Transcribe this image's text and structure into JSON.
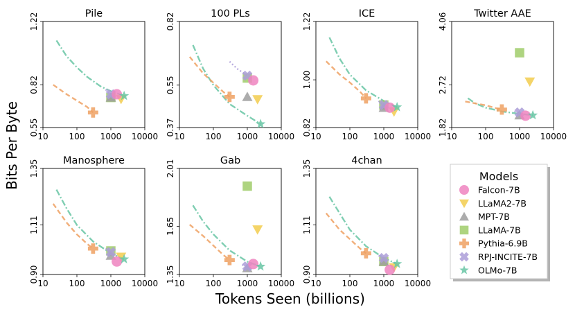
{
  "figure": {
    "xlabel": "Tokens Seen (billions)",
    "ylabel": "Bits Per Byte",
    "legend_title": "Models",
    "legend_placement": "bottom-right",
    "x_scale": "log",
    "x_ticks": [
      10,
      100,
      1000,
      10000
    ],
    "x_tick_labels": [
      "10",
      "100",
      "1000",
      "10000"
    ],
    "grid": false
  },
  "models": [
    {
      "name": "Falcon-7B",
      "marker": "circle",
      "color": "#ee84bf"
    },
    {
      "name": "LLaMA2-7B",
      "marker": "triangle-down",
      "color": "#f2cd4e"
    },
    {
      "name": "MPT-7B",
      "marker": "triangle-up",
      "color": "#9e9e9e"
    },
    {
      "name": "LLaMA-7B",
      "marker": "square",
      "color": "#a0cd6a"
    },
    {
      "name": "Pythia-6.9B",
      "marker": "plus",
      "color": "#eea163"
    },
    {
      "name": "RPJ-INCITE-7B",
      "marker": "x",
      "color": "#ab9dd8"
    },
    {
      "name": "OLMo-7B",
      "marker": "star",
      "color": "#68c6a4"
    }
  ],
  "chart_data": [
    {
      "type": "scatter",
      "title": "Pile",
      "ylim": [
        0.55,
        1.22
      ],
      "yticks": [
        0.55,
        0.82,
        1.22
      ],
      "ytick_labels": [
        "0.55",
        "0.82",
        "1.22"
      ],
      "points": {
        "Falcon-7B": [
          1500,
          0.76
        ],
        "LLaMA2-7B": [
          2000,
          0.73
        ],
        "MPT-7B": [
          1000,
          0.74
        ],
        "LLaMA-7B": [
          1000,
          0.74
        ],
        "Pythia-6.9B": [
          300,
          0.645
        ],
        "RPJ-INCITE-7B": [
          1000,
          0.76
        ],
        "OLMo-7B": [
          2460,
          0.75
        ]
      },
      "curves": {
        "Pythia-6.9B": {
          "x": [
            20,
            50,
            100,
            200,
            300
          ],
          "y": [
            0.82,
            0.76,
            0.72,
            0.68,
            0.645
          ]
        },
        "RPJ-INCITE-7B": {
          "x": [
            700,
            850,
            1000
          ],
          "y": [
            0.79,
            0.775,
            0.76
          ]
        },
        "OLMo-7B": {
          "x": [
            25,
            50,
            100,
            200,
            500,
            1000,
            2460
          ],
          "y": [
            1.1,
            1.0,
            0.93,
            0.87,
            0.81,
            0.78,
            0.75
          ]
        }
      }
    },
    {
      "type": "scatter",
      "title": "100 PLs",
      "ylim": [
        0.37,
        0.82
      ],
      "yticks": [
        0.37,
        0.55,
        0.82
      ],
      "ytick_labels": [
        "0.37",
        "0.55",
        "0.82"
      ],
      "points": {
        "Falcon-7B": [
          1500,
          0.57
        ],
        "LLaMA2-7B": [
          2000,
          0.49
        ],
        "MPT-7B": [
          1000,
          0.5
        ],
        "LLaMA-7B": [
          1000,
          0.58
        ],
        "Pythia-6.9B": [
          300,
          0.5
        ],
        "RPJ-INCITE-7B": [
          1000,
          0.59
        ],
        "OLMo-7B": [
          2460,
          0.385
        ]
      },
      "curves": {
        "Pythia-6.9B": {
          "x": [
            20,
            50,
            100,
            200,
            300
          ],
          "y": [
            0.67,
            0.6,
            0.56,
            0.52,
            0.5
          ]
        },
        "RPJ-INCITE-7B": {
          "x": [
            300,
            500,
            1000
          ],
          "y": [
            0.65,
            0.62,
            0.59
          ]
        },
        "OLMo-7B": {
          "x": [
            25,
            50,
            100,
            300,
            1000,
            2460
          ],
          "y": [
            0.72,
            0.62,
            0.55,
            0.47,
            0.42,
            0.385
          ]
        }
      }
    },
    {
      "type": "scatter",
      "title": "ICE",
      "ylim": [
        0.82,
        1.22
      ],
      "yticks": [
        0.82,
        1.0,
        1.22
      ],
      "ytick_labels": [
        "0.82",
        "1.00",
        "1.22"
      ],
      "points": {
        "Falcon-7B": [
          1500,
          0.895
        ],
        "LLaMA2-7B": [
          2000,
          0.88
        ],
        "MPT-7B": [
          1000,
          0.895
        ],
        "LLaMA-7B": [
          1000,
          0.905
        ],
        "Pythia-6.9B": [
          300,
          0.93
        ],
        "RPJ-INCITE-7B": [
          1000,
          0.905
        ],
        "OLMo-7B": [
          2460,
          0.897
        ]
      },
      "curves": {
        "Pythia-6.9B": {
          "x": [
            20,
            50,
            100,
            200,
            300
          ],
          "y": [
            1.07,
            1.02,
            0.99,
            0.955,
            0.93
          ]
        },
        "RPJ-INCITE-7B": {
          "x": [
            700,
            850,
            1000
          ],
          "y": [
            0.92,
            0.912,
            0.905
          ]
        },
        "OLMo-7B": {
          "x": [
            25,
            50,
            100,
            300,
            1000,
            2460
          ],
          "y": [
            1.16,
            1.08,
            1.02,
            0.96,
            0.92,
            0.897
          ]
        }
      }
    },
    {
      "type": "scatter",
      "title": "Twitter AAE",
      "ylim": [
        1.82,
        4.06
      ],
      "yticks": [
        1.82,
        2.72,
        4.06
      ],
      "ytick_labels": [
        "1.82",
        "2.72",
        "4.06"
      ],
      "points": {
        "Falcon-7B": [
          1500,
          2.07
        ],
        "LLaMA2-7B": [
          2000,
          2.79
        ],
        "MPT-7B": [
          1000,
          2.08
        ],
        "LLaMA-7B": [
          1000,
          3.4
        ],
        "Pythia-6.9B": [
          300,
          2.2
        ],
        "RPJ-INCITE-7B": [
          1000,
          2.14
        ],
        "OLMo-7B": [
          2460,
          2.08
        ]
      },
      "curves": {
        "Pythia-6.9B": {
          "x": [
            25,
            50,
            100,
            200,
            300
          ],
          "y": [
            2.37,
            2.33,
            2.29,
            2.23,
            2.2
          ]
        },
        "RPJ-INCITE-7B": {
          "x": [
            700,
            850,
            1000
          ],
          "y": [
            2.16,
            2.15,
            2.14
          ]
        },
        "OLMo-7B": {
          "x": [
            30,
            50,
            100,
            300,
            1000,
            2460
          ],
          "y": [
            2.44,
            2.33,
            2.24,
            2.16,
            2.11,
            2.08
          ]
        }
      }
    },
    {
      "type": "scatter",
      "title": "Manosphere",
      "ylim": [
        0.9,
        1.35
      ],
      "yticks": [
        0.9,
        1.11,
        1.35
      ],
      "ytick_labels": [
        "0.90",
        "1.11",
        "1.35"
      ],
      "points": {
        "Falcon-7B": [
          1500,
          0.955
        ],
        "LLaMA2-7B": [
          2000,
          0.975
        ],
        "MPT-7B": [
          1000,
          0.98
        ],
        "LLaMA-7B": [
          1000,
          1.0
        ],
        "Pythia-6.9B": [
          300,
          1.01
        ],
        "RPJ-INCITE-7B": [
          1000,
          0.995
        ],
        "OLMo-7B": [
          2460,
          0.965
        ]
      },
      "curves": {
        "Pythia-6.9B": {
          "x": [
            20,
            50,
            100,
            200,
            300
          ],
          "y": [
            1.2,
            1.12,
            1.07,
            1.03,
            1.01
          ]
        },
        "RPJ-INCITE-7B": {
          "x": [
            700,
            850,
            1000
          ],
          "y": [
            1.01,
            1.0,
            0.995
          ]
        },
        "OLMo-7B": {
          "x": [
            25,
            50,
            100,
            300,
            1000,
            2460
          ],
          "y": [
            1.26,
            1.18,
            1.11,
            1.04,
            0.99,
            0.965
          ]
        }
      }
    },
    {
      "type": "scatter",
      "title": "Gab",
      "ylim": [
        1.35,
        2.01
      ],
      "yticks": [
        1.35,
        1.65,
        2.01
      ],
      "ytick_labels": [
        "1.35",
        "1.65",
        "2.01"
      ],
      "points": {
        "Falcon-7B": [
          1500,
          1.415
        ],
        "LLaMA2-7B": [
          2000,
          1.63
        ],
        "MPT-7B": [
          1000,
          1.39
        ],
        "LLaMA-7B": [
          1000,
          1.9
        ],
        "Pythia-6.9B": [
          300,
          1.44
        ],
        "RPJ-INCITE-7B": [
          1000,
          1.4
        ],
        "OLMo-7B": [
          2460,
          1.4
        ]
      },
      "curves": {
        "Pythia-6.9B": {
          "x": [
            20,
            50,
            100,
            200,
            300
          ],
          "y": [
            1.66,
            1.59,
            1.53,
            1.47,
            1.44
          ]
        },
        "RPJ-INCITE-7B": {
          "x": [
            700,
            850,
            1000
          ],
          "y": [
            1.41,
            1.405,
            1.4
          ]
        },
        "OLMo-7B": {
          "x": [
            25,
            50,
            100,
            300,
            1000,
            2460
          ],
          "y": [
            1.78,
            1.68,
            1.6,
            1.5,
            1.43,
            1.4
          ]
        }
      }
    },
    {
      "type": "scatter",
      "title": "4chan",
      "ylim": [
        0.9,
        1.35
      ],
      "yticks": [
        0.9,
        1.11,
        1.35
      ],
      "ytick_labels": [
        "0.90",
        "1.11",
        "1.35"
      ],
      "points": {
        "Falcon-7B": [
          1500,
          0.92
        ],
        "LLaMA2-7B": [
          2000,
          0.93
        ],
        "MPT-7B": [
          1000,
          0.955
        ],
        "LLaMA-7B": [
          1000,
          0.955
        ],
        "Pythia-6.9B": [
          300,
          0.99
        ],
        "RPJ-INCITE-7B": [
          1000,
          0.97
        ],
        "OLMo-7B": [
          2460,
          0.945
        ]
      },
      "curves": {
        "Pythia-6.9B": {
          "x": [
            20,
            50,
            100,
            200,
            300
          ],
          "y": [
            1.16,
            1.09,
            1.05,
            1.01,
            0.99
          ]
        },
        "RPJ-INCITE-7B": {
          "x": [
            700,
            850,
            1000
          ],
          "y": [
            0.98,
            0.975,
            0.97
          ]
        },
        "OLMo-7B": {
          "x": [
            25,
            50,
            100,
            300,
            1000,
            2460
          ],
          "y": [
            1.23,
            1.16,
            1.09,
            1.02,
            0.97,
            0.945
          ]
        }
      }
    }
  ]
}
